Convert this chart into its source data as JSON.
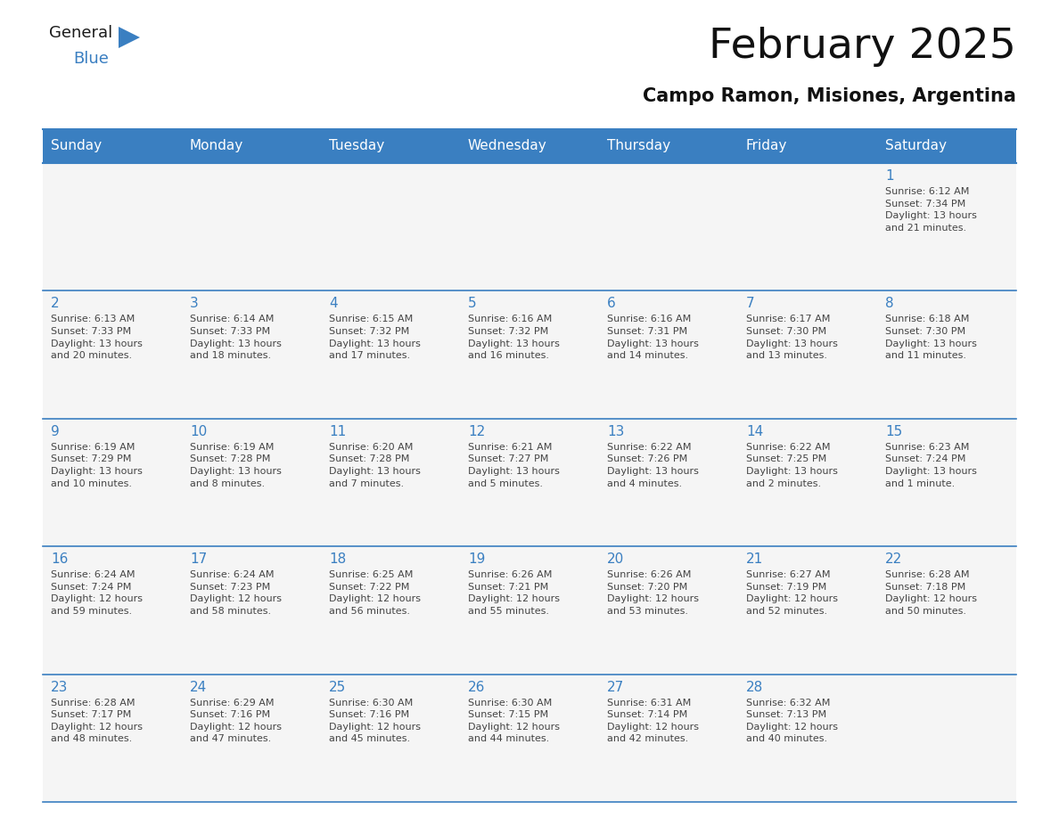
{
  "title": "February 2025",
  "subtitle": "Campo Ramon, Misiones, Argentina",
  "header_color": "#3A7FC1",
  "header_text_color": "#FFFFFF",
  "cell_bg": "#F5F5F5",
  "day_number_color": "#3A7FC1",
  "text_color": "#444444",
  "border_color": "#3A7FC1",
  "line_color": "#AAAAAA",
  "days_of_week": [
    "Sunday",
    "Monday",
    "Tuesday",
    "Wednesday",
    "Thursday",
    "Friday",
    "Saturday"
  ],
  "weeks": [
    [
      {
        "day": null,
        "info": null
      },
      {
        "day": null,
        "info": null
      },
      {
        "day": null,
        "info": null
      },
      {
        "day": null,
        "info": null
      },
      {
        "day": null,
        "info": null
      },
      {
        "day": null,
        "info": null
      },
      {
        "day": 1,
        "info": "Sunrise: 6:12 AM\nSunset: 7:34 PM\nDaylight: 13 hours\nand 21 minutes."
      }
    ],
    [
      {
        "day": 2,
        "info": "Sunrise: 6:13 AM\nSunset: 7:33 PM\nDaylight: 13 hours\nand 20 minutes."
      },
      {
        "day": 3,
        "info": "Sunrise: 6:14 AM\nSunset: 7:33 PM\nDaylight: 13 hours\nand 18 minutes."
      },
      {
        "day": 4,
        "info": "Sunrise: 6:15 AM\nSunset: 7:32 PM\nDaylight: 13 hours\nand 17 minutes."
      },
      {
        "day": 5,
        "info": "Sunrise: 6:16 AM\nSunset: 7:32 PM\nDaylight: 13 hours\nand 16 minutes."
      },
      {
        "day": 6,
        "info": "Sunrise: 6:16 AM\nSunset: 7:31 PM\nDaylight: 13 hours\nand 14 minutes."
      },
      {
        "day": 7,
        "info": "Sunrise: 6:17 AM\nSunset: 7:30 PM\nDaylight: 13 hours\nand 13 minutes."
      },
      {
        "day": 8,
        "info": "Sunrise: 6:18 AM\nSunset: 7:30 PM\nDaylight: 13 hours\nand 11 minutes."
      }
    ],
    [
      {
        "day": 9,
        "info": "Sunrise: 6:19 AM\nSunset: 7:29 PM\nDaylight: 13 hours\nand 10 minutes."
      },
      {
        "day": 10,
        "info": "Sunrise: 6:19 AM\nSunset: 7:28 PM\nDaylight: 13 hours\nand 8 minutes."
      },
      {
        "day": 11,
        "info": "Sunrise: 6:20 AM\nSunset: 7:28 PM\nDaylight: 13 hours\nand 7 minutes."
      },
      {
        "day": 12,
        "info": "Sunrise: 6:21 AM\nSunset: 7:27 PM\nDaylight: 13 hours\nand 5 minutes."
      },
      {
        "day": 13,
        "info": "Sunrise: 6:22 AM\nSunset: 7:26 PM\nDaylight: 13 hours\nand 4 minutes."
      },
      {
        "day": 14,
        "info": "Sunrise: 6:22 AM\nSunset: 7:25 PM\nDaylight: 13 hours\nand 2 minutes."
      },
      {
        "day": 15,
        "info": "Sunrise: 6:23 AM\nSunset: 7:24 PM\nDaylight: 13 hours\nand 1 minute."
      }
    ],
    [
      {
        "day": 16,
        "info": "Sunrise: 6:24 AM\nSunset: 7:24 PM\nDaylight: 12 hours\nand 59 minutes."
      },
      {
        "day": 17,
        "info": "Sunrise: 6:24 AM\nSunset: 7:23 PM\nDaylight: 12 hours\nand 58 minutes."
      },
      {
        "day": 18,
        "info": "Sunrise: 6:25 AM\nSunset: 7:22 PM\nDaylight: 12 hours\nand 56 minutes."
      },
      {
        "day": 19,
        "info": "Sunrise: 6:26 AM\nSunset: 7:21 PM\nDaylight: 12 hours\nand 55 minutes."
      },
      {
        "day": 20,
        "info": "Sunrise: 6:26 AM\nSunset: 7:20 PM\nDaylight: 12 hours\nand 53 minutes."
      },
      {
        "day": 21,
        "info": "Sunrise: 6:27 AM\nSunset: 7:19 PM\nDaylight: 12 hours\nand 52 minutes."
      },
      {
        "day": 22,
        "info": "Sunrise: 6:28 AM\nSunset: 7:18 PM\nDaylight: 12 hours\nand 50 minutes."
      }
    ],
    [
      {
        "day": 23,
        "info": "Sunrise: 6:28 AM\nSunset: 7:17 PM\nDaylight: 12 hours\nand 48 minutes."
      },
      {
        "day": 24,
        "info": "Sunrise: 6:29 AM\nSunset: 7:16 PM\nDaylight: 12 hours\nand 47 minutes."
      },
      {
        "day": 25,
        "info": "Sunrise: 6:30 AM\nSunset: 7:16 PM\nDaylight: 12 hours\nand 45 minutes."
      },
      {
        "day": 26,
        "info": "Sunrise: 6:30 AM\nSunset: 7:15 PM\nDaylight: 12 hours\nand 44 minutes."
      },
      {
        "day": 27,
        "info": "Sunrise: 6:31 AM\nSunset: 7:14 PM\nDaylight: 12 hours\nand 42 minutes."
      },
      {
        "day": 28,
        "info": "Sunrise: 6:32 AM\nSunset: 7:13 PM\nDaylight: 12 hours\nand 40 minutes."
      },
      {
        "day": null,
        "info": null
      }
    ]
  ],
  "logo_general_color": "#1A1A1A",
  "logo_blue_color": "#3A7FC1",
  "logo_triangle_color": "#3A7FC1"
}
